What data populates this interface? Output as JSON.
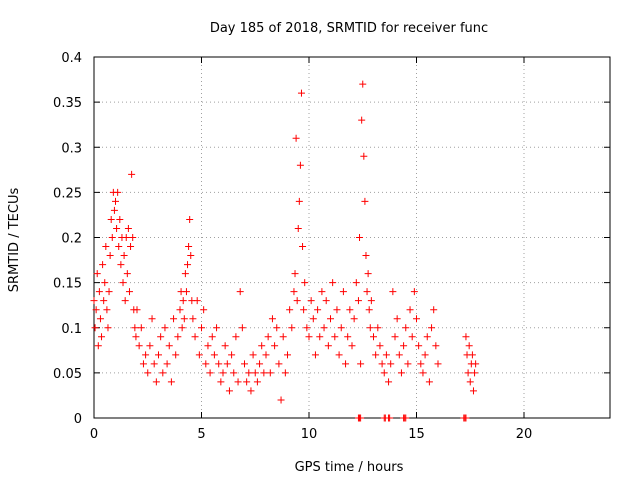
{
  "chart_data": {
    "type": "scatter",
    "title": "Day 185 of 2018, SRMTID for receiver func",
    "xlabel": "GPS time / hours",
    "ylabel": "SRMTID / TECUs",
    "xlim": [
      0,
      24
    ],
    "ylim": [
      0,
      0.4
    ],
    "x_ticks": [
      0,
      5,
      10,
      15,
      20
    ],
    "x_tick_labels": [
      "0",
      "5",
      "10",
      "15",
      "20"
    ],
    "y_ticks": [
      0,
      0.05,
      0.1,
      0.15,
      0.2,
      0.25,
      0.3,
      0.35,
      0.4
    ],
    "y_tick_labels": [
      "0",
      "0.05",
      "0.1",
      "0.15",
      "0.2",
      "0.25",
      "0.3",
      "0.35",
      "0.4"
    ],
    "grid": true,
    "marker_color": "#ff0000",
    "marker": "plus",
    "series": [
      {
        "points": [
          [
            0.0,
            0.13
          ],
          [
            0.05,
            0.1
          ],
          [
            0.1,
            0.12
          ],
          [
            0.15,
            0.16
          ],
          [
            0.2,
            0.08
          ],
          [
            0.25,
            0.14
          ],
          [
            0.3,
            0.11
          ],
          [
            0.35,
            0.09
          ],
          [
            0.4,
            0.17
          ],
          [
            0.45,
            0.13
          ],
          [
            0.5,
            0.15
          ],
          [
            0.55,
            0.19
          ],
          [
            0.6,
            0.12
          ],
          [
            0.65,
            0.1
          ],
          [
            0.7,
            0.14
          ],
          [
            0.75,
            0.18
          ],
          [
            0.8,
            0.22
          ],
          [
            0.85,
            0.2
          ],
          [
            0.9,
            0.25
          ],
          [
            0.95,
            0.23
          ],
          [
            1.0,
            0.24
          ],
          [
            1.05,
            0.21
          ],
          [
            1.1,
            0.25
          ],
          [
            1.15,
            0.19
          ],
          [
            1.2,
            0.22
          ],
          [
            1.25,
            0.17
          ],
          [
            1.3,
            0.2
          ],
          [
            1.35,
            0.15
          ],
          [
            1.4,
            0.18
          ],
          [
            1.45,
            0.13
          ],
          [
            1.5,
            0.2
          ],
          [
            1.55,
            0.16
          ],
          [
            1.6,
            0.21
          ],
          [
            1.65,
            0.14
          ],
          [
            1.7,
            0.19
          ],
          [
            1.75,
            0.27
          ],
          [
            1.8,
            0.2
          ],
          [
            1.85,
            0.12
          ],
          [
            1.9,
            0.1
          ],
          [
            1.95,
            0.09
          ],
          [
            2.0,
            0.12
          ],
          [
            2.1,
            0.08
          ],
          [
            2.2,
            0.1
          ],
          [
            2.3,
            0.06
          ],
          [
            2.4,
            0.07
          ],
          [
            2.5,
            0.05
          ],
          [
            2.6,
            0.08
          ],
          [
            2.7,
            0.11
          ],
          [
            2.8,
            0.06
          ],
          [
            2.9,
            0.04
          ],
          [
            3.0,
            0.07
          ],
          [
            3.1,
            0.09
          ],
          [
            3.2,
            0.05
          ],
          [
            3.3,
            0.1
          ],
          [
            3.4,
            0.06
          ],
          [
            3.5,
            0.08
          ],
          [
            3.6,
            0.04
          ],
          [
            3.7,
            0.11
          ],
          [
            3.8,
            0.07
          ],
          [
            3.9,
            0.09
          ],
          [
            4.0,
            0.12
          ],
          [
            4.05,
            0.14
          ],
          [
            4.1,
            0.1
          ],
          [
            4.15,
            0.13
          ],
          [
            4.2,
            0.11
          ],
          [
            4.25,
            0.16
          ],
          [
            4.3,
            0.14
          ],
          [
            4.35,
            0.17
          ],
          [
            4.4,
            0.19
          ],
          [
            4.45,
            0.22
          ],
          [
            4.5,
            0.18
          ],
          [
            4.55,
            0.13
          ],
          [
            4.6,
            0.11
          ],
          [
            4.7,
            0.09
          ],
          [
            4.8,
            0.13
          ],
          [
            4.9,
            0.07
          ],
          [
            5.0,
            0.1
          ],
          [
            5.1,
            0.12
          ],
          [
            5.2,
            0.06
          ],
          [
            5.3,
            0.08
          ],
          [
            5.4,
            0.05
          ],
          [
            5.5,
            0.09
          ],
          [
            5.6,
            0.07
          ],
          [
            5.7,
            0.1
          ],
          [
            5.8,
            0.06
          ],
          [
            5.9,
            0.04
          ],
          [
            6.0,
            0.05
          ],
          [
            6.1,
            0.08
          ],
          [
            6.2,
            0.06
          ],
          [
            6.3,
            0.03
          ],
          [
            6.4,
            0.07
          ],
          [
            6.5,
            0.05
          ],
          [
            6.6,
            0.09
          ],
          [
            6.7,
            0.04
          ],
          [
            6.8,
            0.14
          ],
          [
            6.9,
            0.1
          ],
          [
            7.0,
            0.06
          ],
          [
            7.1,
            0.04
          ],
          [
            7.2,
            0.05
          ],
          [
            7.3,
            0.03
          ],
          [
            7.4,
            0.07
          ],
          [
            7.5,
            0.05
          ],
          [
            7.6,
            0.04
          ],
          [
            7.7,
            0.06
          ],
          [
            7.8,
            0.08
          ],
          [
            7.9,
            0.05
          ],
          [
            8.0,
            0.07
          ],
          [
            8.1,
            0.09
          ],
          [
            8.2,
            0.05
          ],
          [
            8.3,
            0.11
          ],
          [
            8.4,
            0.08
          ],
          [
            8.5,
            0.1
          ],
          [
            8.6,
            0.06
          ],
          [
            8.7,
            0.02
          ],
          [
            8.8,
            0.09
          ],
          [
            8.9,
            0.05
          ],
          [
            9.0,
            0.07
          ],
          [
            9.1,
            0.12
          ],
          [
            9.2,
            0.1
          ],
          [
            9.3,
            0.14
          ],
          [
            9.35,
            0.16
          ],
          [
            9.4,
            0.31
          ],
          [
            9.45,
            0.13
          ],
          [
            9.5,
            0.21
          ],
          [
            9.55,
            0.24
          ],
          [
            9.6,
            0.28
          ],
          [
            9.65,
            0.36
          ],
          [
            9.7,
            0.19
          ],
          [
            9.75,
            0.12
          ],
          [
            9.8,
            0.15
          ],
          [
            9.9,
            0.1
          ],
          [
            10.0,
            0.09
          ],
          [
            10.1,
            0.13
          ],
          [
            10.2,
            0.11
          ],
          [
            10.3,
            0.07
          ],
          [
            10.4,
            0.12
          ],
          [
            10.5,
            0.09
          ],
          [
            10.6,
            0.14
          ],
          [
            10.7,
            0.1
          ],
          [
            10.8,
            0.13
          ],
          [
            10.9,
            0.08
          ],
          [
            11.0,
            0.11
          ],
          [
            11.1,
            0.15
          ],
          [
            11.2,
            0.09
          ],
          [
            11.3,
            0.12
          ],
          [
            11.4,
            0.07
          ],
          [
            11.5,
            0.1
          ],
          [
            11.6,
            0.14
          ],
          [
            11.7,
            0.06
          ],
          [
            11.8,
            0.09
          ],
          [
            11.9,
            0.12
          ],
          [
            12.0,
            0.08
          ],
          [
            12.1,
            0.11
          ],
          [
            12.2,
            0.15
          ],
          [
            12.3,
            0.13
          ],
          [
            12.35,
            0.2
          ],
          [
            12.4,
            0.06
          ],
          [
            12.45,
            0.33
          ],
          [
            12.5,
            0.37
          ],
          [
            12.55,
            0.29
          ],
          [
            12.6,
            0.24
          ],
          [
            12.65,
            0.18
          ],
          [
            12.7,
            0.14
          ],
          [
            12.75,
            0.16
          ],
          [
            12.8,
            0.12
          ],
          [
            12.85,
            0.1
          ],
          [
            12.9,
            0.13
          ],
          [
            13.0,
            0.09
          ],
          [
            13.1,
            0.07
          ],
          [
            13.2,
            0.1
          ],
          [
            13.3,
            0.08
          ],
          [
            13.4,
            0.06
          ],
          [
            13.5,
            0.05
          ],
          [
            13.6,
            0.07
          ],
          [
            13.7,
            0.04
          ],
          [
            13.8,
            0.06
          ],
          [
            13.9,
            0.14
          ],
          [
            14.0,
            0.09
          ],
          [
            14.1,
            0.11
          ],
          [
            14.2,
            0.07
          ],
          [
            14.3,
            0.05
          ],
          [
            14.4,
            0.08
          ],
          [
            14.5,
            0.1
          ],
          [
            14.6,
            0.06
          ],
          [
            14.7,
            0.12
          ],
          [
            14.8,
            0.09
          ],
          [
            14.9,
            0.14
          ],
          [
            15.0,
            0.11
          ],
          [
            15.1,
            0.08
          ],
          [
            15.2,
            0.06
          ],
          [
            15.3,
            0.05
          ],
          [
            15.4,
            0.07
          ],
          [
            15.5,
            0.09
          ],
          [
            15.6,
            0.04
          ],
          [
            15.7,
            0.1
          ],
          [
            15.8,
            0.12
          ],
          [
            15.9,
            0.08
          ],
          [
            16.0,
            0.06
          ],
          [
            17.3,
            0.09
          ],
          [
            17.35,
            0.07
          ],
          [
            17.4,
            0.05
          ],
          [
            17.45,
            0.08
          ],
          [
            17.5,
            0.04
          ],
          [
            17.55,
            0.06
          ],
          [
            17.6,
            0.07
          ],
          [
            17.65,
            0.03
          ],
          [
            17.7,
            0.05
          ],
          [
            17.75,
            0.06
          ]
        ]
      },
      {
        "points": [
          [
            12.3,
            0.0
          ],
          [
            12.35,
            0.0
          ],
          [
            12.4,
            0.0
          ],
          [
            13.5,
            0.0
          ],
          [
            13.55,
            0.0
          ],
          [
            13.7,
            0.0
          ],
          [
            13.75,
            0.0
          ],
          [
            14.4,
            0.0
          ],
          [
            14.45,
            0.0
          ],
          [
            14.5,
            0.0
          ],
          [
            17.2,
            0.0
          ],
          [
            17.25,
            0.0
          ],
          [
            17.3,
            0.0
          ]
        ]
      }
    ]
  }
}
